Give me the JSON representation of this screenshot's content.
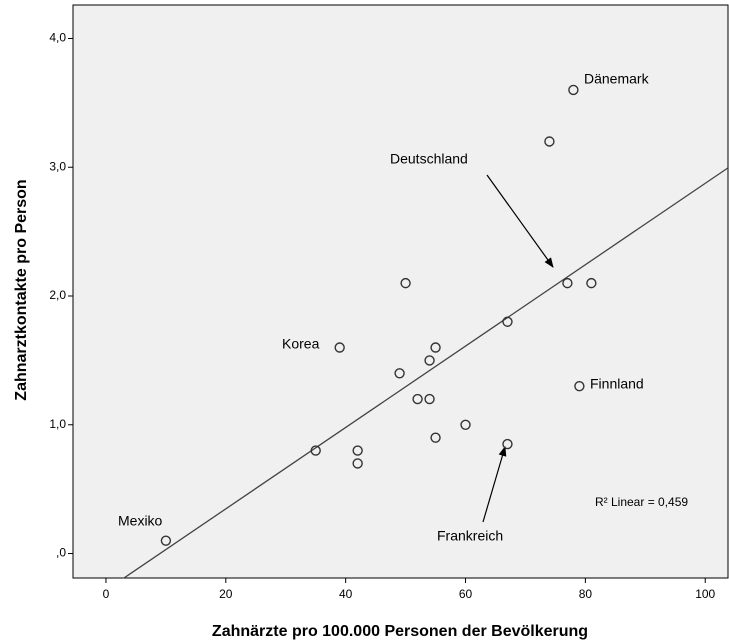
{
  "chart_data": {
    "type": "scatter",
    "x_label": "Zahnärzte pro 100.000 Personen der Bevölkerung",
    "y_label": "Zahnarztkontakte pro Person",
    "x": [
      10,
      35,
      42,
      42,
      39,
      50,
      49,
      54,
      55,
      52,
      54,
      55,
      60,
      67,
      67,
      74,
      78,
      77,
      81,
      79
    ],
    "values": [
      0.1,
      0.8,
      0.8,
      0.7,
      1.6,
      2.1,
      1.4,
      1.5,
      1.6,
      1.2,
      1.2,
      0.9,
      1.0,
      1.8,
      0.85,
      3.2,
      3.6,
      2.1,
      2.1,
      1.3
    ],
    "color": "#333333",
    "xlim": [
      -5.5,
      103.8
    ],
    "ylim": [
      -0.19,
      4.26
    ],
    "xticks": [
      0,
      20,
      40,
      60,
      80,
      100
    ],
    "yticks": [
      {
        "value": 0,
        "label": ",0"
      },
      {
        "value": 1,
        "label": "1,0"
      },
      {
        "value": 2,
        "label": "2,0"
      },
      {
        "value": 3,
        "label": "3,0"
      },
      {
        "value": 4,
        "label": "4,0"
      }
    ],
    "fit": {
      "slope": 0.0316,
      "intercept": -0.285
    },
    "annotations": [
      "Dänemark",
      "Deutschland",
      "Korea",
      "Finnland",
      "Frankreich",
      "Mexiko",
      "R² Linear = 0,459"
    ]
  }
}
